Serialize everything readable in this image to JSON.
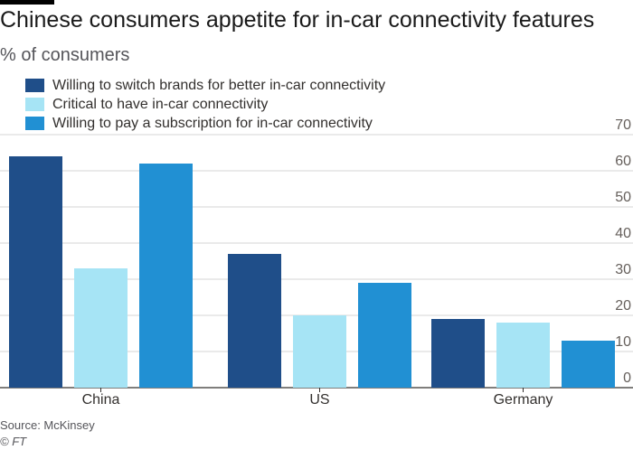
{
  "title": "Chinese consumers appetite for in-car connectivity features",
  "subtitle": "% of consumers",
  "source": "Source: McKinsey",
  "credit": "© FT",
  "chart_data": {
    "type": "bar",
    "title": "Chinese consumers appetite for in-car connectivity features",
    "ylabel": "% of consumers",
    "xlabel": "",
    "categories": [
      "China",
      "US",
      "Germany"
    ],
    "series": [
      {
        "name": "Willing to switch brands for better in-car connectivity",
        "color": "#1f4e89",
        "values": [
          64,
          37,
          19
        ]
      },
      {
        "name": "Critical to have in-car connectivity",
        "color": "#a6e4f5",
        "values": [
          33,
          20,
          18
        ]
      },
      {
        "name": "Willing to pay a subscription for in-car connectivity",
        "color": "#2190d3",
        "values": [
          62,
          29,
          13
        ]
      }
    ],
    "ylim": [
      0,
      70
    ],
    "yticks": [
      0,
      10,
      20,
      30,
      40,
      50,
      60,
      70
    ],
    "y_axis_side": "right",
    "grid": true,
    "legend": "top-left"
  }
}
